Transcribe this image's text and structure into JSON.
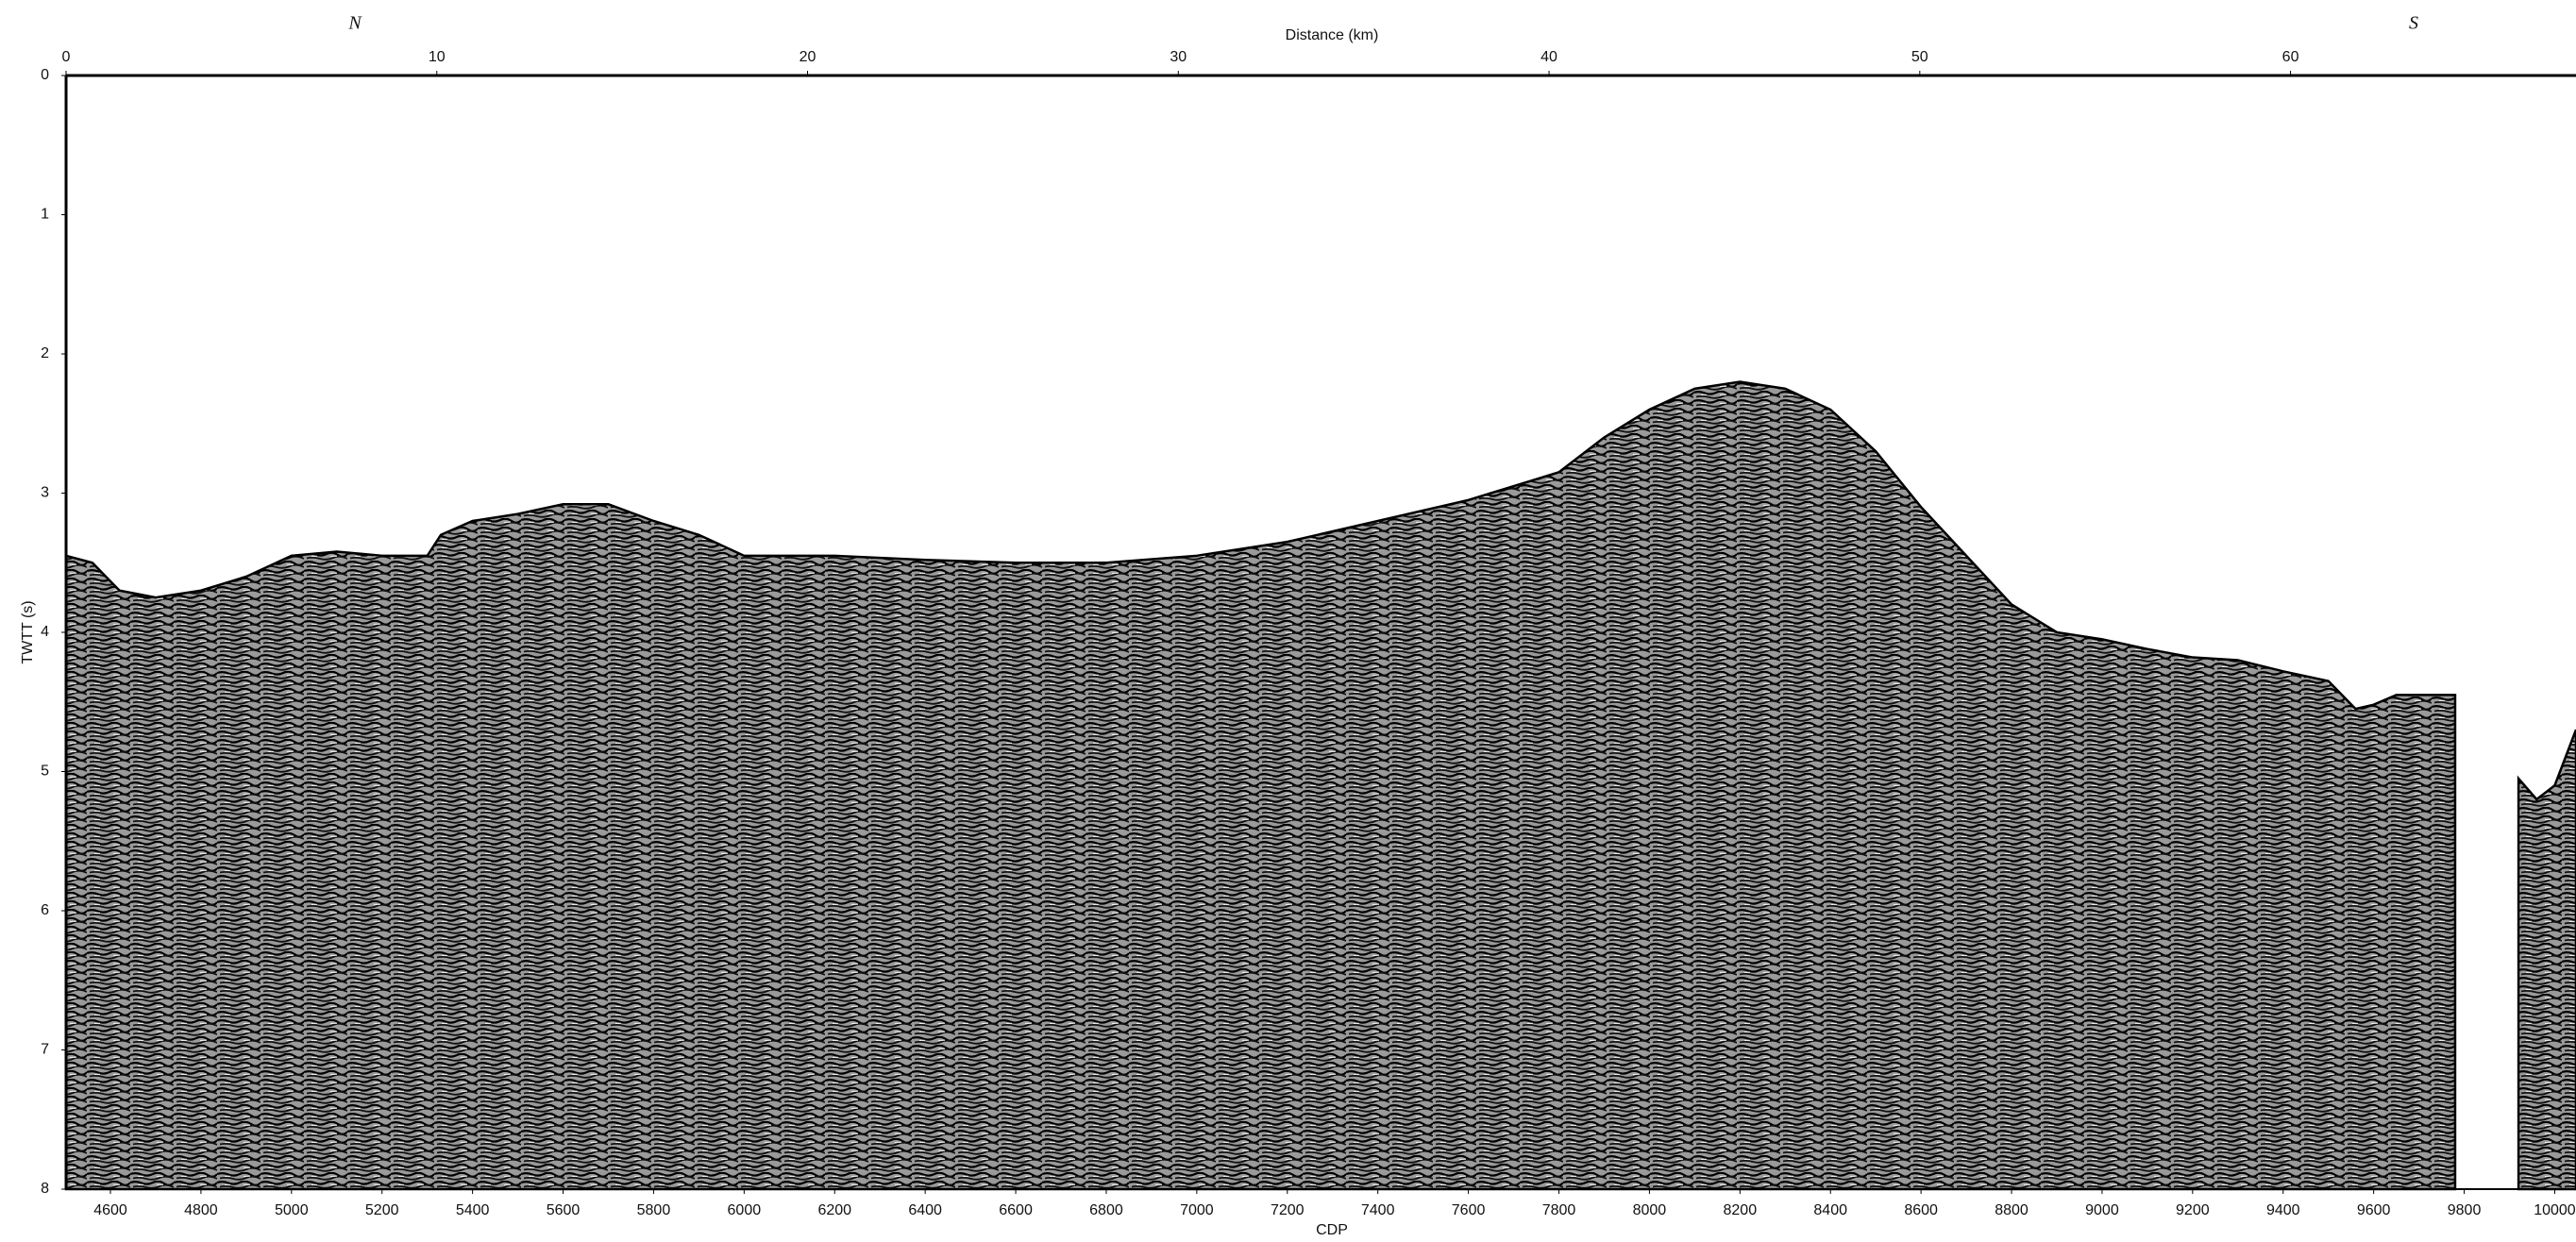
{
  "chart_data": {
    "type": "area",
    "xlabel": "CDP",
    "ylabel": "TWTT (s)",
    "x2label": "Distance (km)",
    "annotations": [
      "N",
      "S"
    ],
    "x": [
      4502,
      4560,
      4620,
      4700,
      4800,
      4900,
      5000,
      5100,
      5200,
      5300,
      5330,
      5400,
      5500,
      5600,
      5700,
      5800,
      5900,
      6000,
      6100,
      6200,
      6400,
      6600,
      6800,
      7000,
      7200,
      7400,
      7600,
      7800,
      7900,
      8000,
      8100,
      8200,
      8300,
      8400,
      8500,
      8600,
      8700,
      8800,
      8900,
      9000,
      9100,
      9200,
      9300,
      9400,
      9500,
      9560,
      9600,
      9650,
      9780,
      9850,
      9920,
      9960,
      10000,
      10047
    ],
    "values": [
      3.45,
      3.5,
      3.7,
      3.75,
      3.7,
      3.6,
      3.45,
      3.42,
      3.45,
      3.45,
      3.3,
      3.2,
      3.15,
      3.08,
      3.08,
      3.2,
      3.3,
      3.45,
      3.45,
      3.45,
      3.48,
      3.5,
      3.5,
      3.45,
      3.35,
      3.2,
      3.05,
      2.85,
      2.6,
      2.4,
      2.25,
      2.2,
      2.25,
      2.4,
      2.7,
      3.1,
      3.45,
      3.8,
      4.0,
      4.05,
      4.12,
      4.18,
      4.2,
      4.28,
      4.35,
      4.55,
      4.52,
      4.45,
      4.45,
      null,
      5.05,
      5.2,
      5.1,
      4.7
    ],
    "xlim": [
      4502,
      10047
    ],
    "xticks": [
      4600,
      4800,
      5000,
      5200,
      5400,
      5600,
      5800,
      6000,
      6200,
      6400,
      6600,
      6800,
      7000,
      7200,
      7400,
      7600,
      7800,
      8000,
      8200,
      8400,
      8600,
      8800,
      9000,
      9200,
      9400,
      9600,
      9800,
      10000
    ],
    "x2lim": [
      0,
      67.7
    ],
    "x2ticks": [
      0,
      10,
      20,
      30,
      40,
      50,
      60
    ],
    "ylim": [
      0,
      8
    ],
    "y_inverted": true,
    "yticks": [
      0,
      1,
      2,
      3,
      4,
      5,
      6,
      7,
      8
    ]
  }
}
